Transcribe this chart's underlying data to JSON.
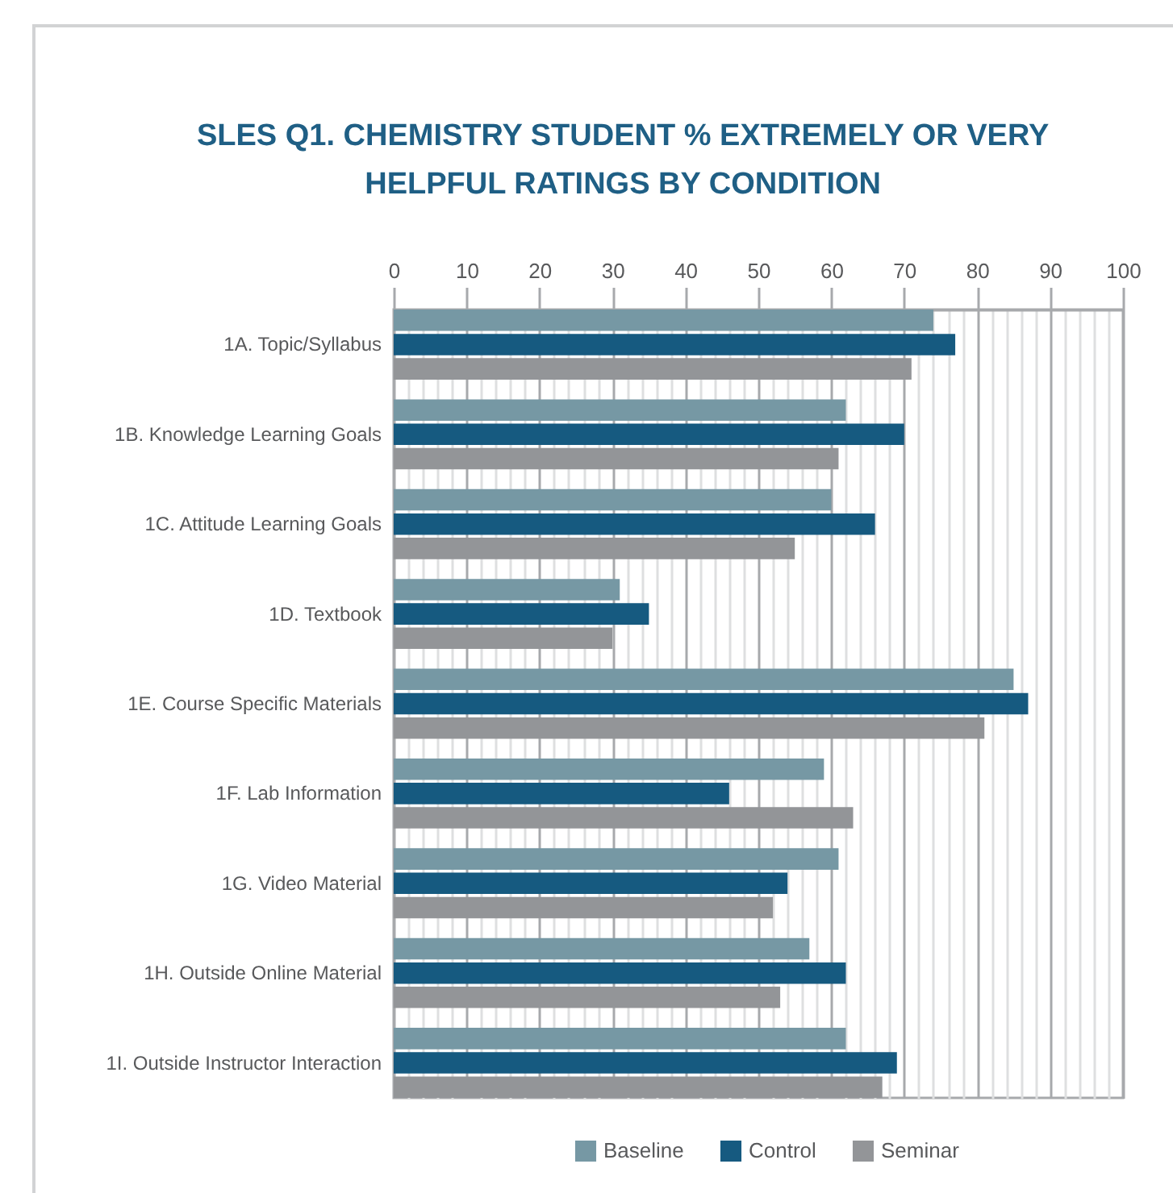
{
  "chart_data": {
    "type": "bar",
    "orientation": "horizontal",
    "title": "SLES Q1. CHEMISTRY STUDENT % EXTREMELY OR VERY HELPFUL RATINGS BY CONDITION",
    "categories": [
      "1A. Topic/Syllabus",
      "1B. Knowledge Learning Goals",
      "1C. Attitude Learning Goals",
      "1D. Textbook",
      "1E. Course Specific Materials",
      "1F. Lab Information",
      "1G. Video Material",
      "1H. Outside Online Material",
      "1I. Outside Instructor Interaction"
    ],
    "series": [
      {
        "name": "Baseline",
        "color": "#7698a4",
        "values": [
          74,
          62,
          60,
          31,
          85,
          59,
          61,
          57,
          62
        ]
      },
      {
        "name": "Control",
        "color": "#165a80",
        "values": [
          77,
          70,
          66,
          35,
          87,
          46,
          54,
          62,
          69
        ]
      },
      {
        "name": "Seminar",
        "color": "#939598",
        "values": [
          71,
          61,
          55,
          30,
          81,
          63,
          52,
          53,
          67
        ]
      }
    ],
    "xlim": [
      0,
      100
    ],
    "xticks": [
      0,
      {
        "value": 2,
        "label": null
      },
      {
        "value": 4,
        "label": null
      },
      {
        "value": 6,
        "label": null
      },
      {
        "value": 8,
        "label": null
      },
      10,
      {
        "value": 12,
        "label": null
      },
      {
        "value": 14,
        "label": null
      },
      {
        "value": 16,
        "label": null
      },
      {
        "value": 18,
        "label": null
      },
      20,
      {
        "value": 22,
        "label": null
      },
      {
        "value": 24,
        "label": null
      },
      {
        "value": 26,
        "label": null
      },
      {
        "value": 28,
        "label": null
      },
      30,
      {
        "value": 32,
        "label": null
      },
      {
        "value": 34,
        "label": null
      },
      {
        "value": 36,
        "label": null
      },
      {
        "value": 38,
        "label": null
      },
      40,
      {
        "value": 42,
        "label": null
      },
      {
        "value": 44,
        "label": null
      },
      {
        "value": 46,
        "label": null
      },
      {
        "value": 48,
        "label": null
      },
      50,
      {
        "value": 52,
        "label": null
      },
      {
        "value": 54,
        "label": null
      },
      {
        "value": 56,
        "label": null
      },
      {
        "value": 58,
        "label": null
      },
      60,
      {
        "value": 62,
        "label": null
      },
      {
        "value": 64,
        "label": null
      },
      {
        "value": 66,
        "label": null
      },
      {
        "value": 68,
        "label": null
      },
      70,
      {
        "value": 72,
        "label": null
      },
      {
        "value": 74,
        "label": null
      },
      {
        "value": 76,
        "label": null
      },
      {
        "value": 78,
        "label": null
      },
      80,
      {
        "value": 82,
        "label": null
      },
      {
        "value": 84,
        "label": null
      },
      {
        "value": 86,
        "label": null
      },
      {
        "value": 88,
        "label": null
      },
      90,
      {
        "value": 92,
        "label": null
      },
      {
        "value": 94,
        "label": null
      },
      {
        "value": 96,
        "label": null
      },
      {
        "value": 98,
        "label": null
      },
      100
    ],
    "grid": "x",
    "legend": "bottom"
  }
}
